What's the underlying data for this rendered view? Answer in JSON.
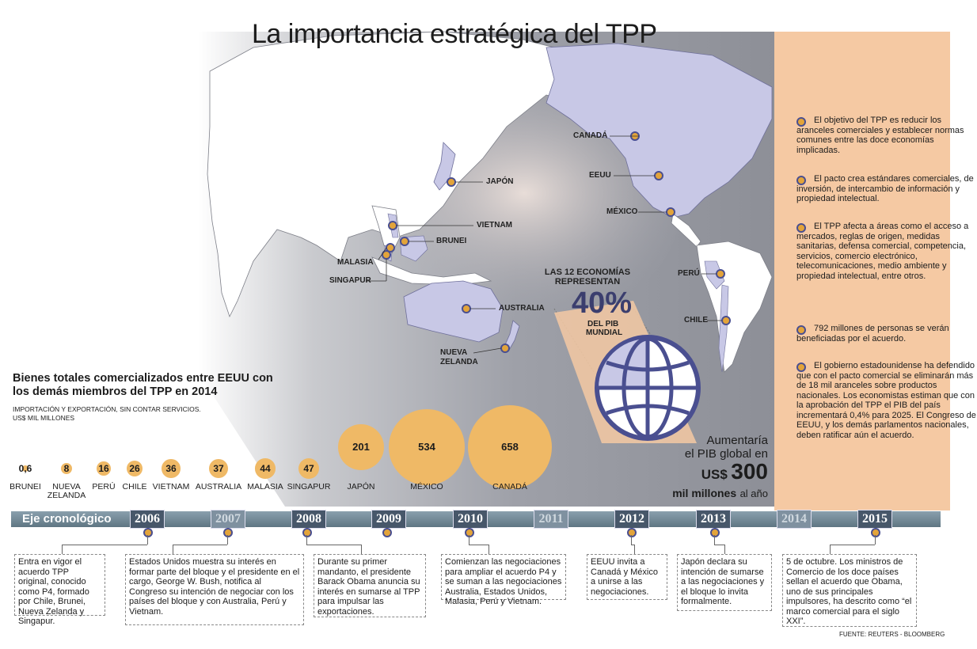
{
  "title": "La importancia estratégica del TPP",
  "map_labels": {
    "canada": "CANADÁ",
    "eeuu": "EEUU",
    "mexico": "MÉXICO",
    "japon": "JAPÓN",
    "vietnam": "VIETNAM",
    "brunei": "BRUNEI",
    "malasia": "MALASIA",
    "singapur": "SINGAPUR",
    "australia": "AUSTRALIA",
    "nueva_zelanda": "NUEVA ZELANDA",
    "peru": "PERÚ",
    "chile": "CHILE"
  },
  "gdp": {
    "line1": "LAS 12 ECONOMÍAS",
    "line2": "REPRESENTAN",
    "percent": "40%",
    "line3": "DEL PIB",
    "line4": "MUNDIAL",
    "increase_1": "Aumentaría",
    "increase_2": "el PIB global en",
    "increase_currency": "US$",
    "increase_value": "300",
    "increase_unit": "mil millones",
    "increase_suffix": "al año"
  },
  "chart_data": {
    "type": "bubble",
    "title": "Bienes totales comercializados entre EEUU con los demás miembros del TPP en 2014",
    "subtitle": "IMPORTACIÓN Y EXPORTACIÓN, SIN CONTAR SERVICIOS.",
    "unit": "US$ MIL MILLONES",
    "categories": [
      "BRUNEI",
      "NUEVA ZELANDA",
      "PERÚ",
      "CHILE",
      "VIETNAM",
      "AUSTRALIA",
      "MALASIA",
      "SINGAPUR",
      "JAPÓN",
      "MÉXICO",
      "CANADÁ"
    ],
    "values": [
      0.6,
      8,
      16,
      26,
      36,
      37,
      44,
      47,
      201,
      534,
      658
    ],
    "value_labels": [
      "0,6",
      "8",
      "16",
      "26",
      "36",
      "37",
      "44",
      "47",
      "201",
      "534",
      "658"
    ]
  },
  "points": [
    "El objetivo del TPP es reducir los aranceles comerciales y establecer normas comunes entre las doce economías implicadas.",
    "El pacto crea estándares comerciales, de inversión, de intercambio de información y propiedad intelectual.",
    "El TPP afecta a áreas como el acceso a mercados, reglas de origen, medidas sanitarias, defensa comercial, competencia, servicios, comercio electrónico, telecomunicaciones, medio ambiente y propiedad intelectual, entre otros.",
    "792 millones de personas se verán beneficiadas por el acuerdo.",
    "El gobierno estadounidense ha defendido que con el pacto comercial se eliminarán más de 18 mil aranceles sobre productos nacionales. Los economistas estiman que con la aprobación del TPP el PIB del país incrementará 0,4% para 2025. El Congreso de EEUU, y los demás parlamentos nacionales, deben ratificar aún el acuerdo."
  ],
  "timeline": {
    "label": "Eje cronológico",
    "years": [
      "2006",
      "2007",
      "2008",
      "2009",
      "2010",
      "2011",
      "2012",
      "2013",
      "2014",
      "2015"
    ],
    "events": [
      "Entra en vigor el acuerdo TPP original, conocido como P4, formado por Chile, Brunei, Nueva Zelanda y Singapur.",
      "Estados Unidos muestra su interés en formar parte del bloque y el presidente en el cargo, George W. Bush, notifica al Congreso su intención de negociar con los países del bloque y con Australia, Perú y Vietnam.",
      "Durante su primer mandanto, el presidente Barack Obama anuncia su interés en sumarse al TPP para impulsar las exportaciones.",
      "Comienzan las negociaciones para ampliar el acuerdo P4 y se suman a las negociaciones Australia, Estados Unidos, Malasia, Perú y Vietnam.",
      "EEUU invita a Canadá y México a unirse a las negociaciones.",
      "Japón declara su intención de sumarse a las negociaciones y el bloque lo invita formalmente.",
      "5 de octubre. Los ministros de Comercio de los doce países sellan el acuerdo que Obama, uno de sus principales impulsores, ha descrito como “el marco comercial para el siglo XXI”."
    ]
  },
  "source": "FUENTE: REUTERS - BLOOMBERG"
}
